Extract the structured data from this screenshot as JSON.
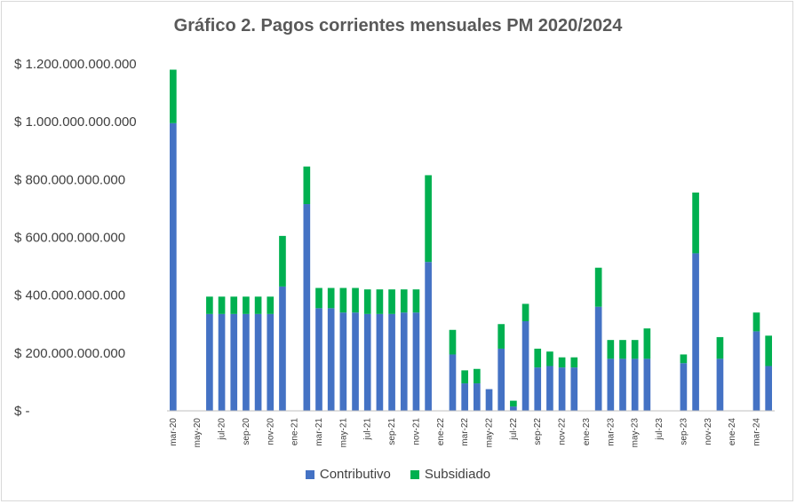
{
  "chart_data": {
    "type": "bar",
    "stacked": true,
    "title": "Gráfico 2. Pagos corrientes mensuales PM 2020/2024",
    "xlabel": "",
    "ylabel": "",
    "ylim": [
      0,
      1200000000000
    ],
    "grid": false,
    "legend_position": "bottom",
    "y_ticks": [
      {
        "value": 0,
        "label": "$ -"
      },
      {
        "value": 200000000000,
        "label": "$ 200.000.000.000"
      },
      {
        "value": 400000000000,
        "label": "$ 400.000.000.000"
      },
      {
        "value": 600000000000,
        "label": "$ 600.000.000.000"
      },
      {
        "value": 800000000000,
        "label": "$ 800.000.000.000"
      },
      {
        "value": 1000000000000,
        "label": "$ 1.000.000.000.000"
      },
      {
        "value": 1200000000000,
        "label": "$ 1.200.000.000.000"
      }
    ],
    "categories": [
      "mar-20",
      "abr-20",
      "may-20",
      "jun-20",
      "jul-20",
      "ago-20",
      "sep-20",
      "oct-20",
      "nov-20",
      "dic-20",
      "ene-21",
      "feb-21",
      "mar-21",
      "abr-21",
      "may-21",
      "jun-21",
      "jul-21",
      "ago-21",
      "sep-21",
      "oct-21",
      "nov-21",
      "dic-21",
      "ene-22",
      "feb-22",
      "mar-22",
      "abr-22",
      "may-22",
      "jun-22",
      "jul-22",
      "ago-22",
      "sep-22",
      "oct-22",
      "nov-22",
      "dic-22",
      "ene-23",
      "feb-23",
      "mar-23",
      "abr-23",
      "may-23",
      "jun-23",
      "jul-23",
      "ago-23",
      "sep-23",
      "oct-23",
      "nov-23",
      "dic-23",
      "ene-24",
      "feb-24",
      "mar-24",
      "abr-24"
    ],
    "x_tick_labels": [
      "mar-20",
      "",
      "may-20",
      "",
      "jul-20",
      "",
      "sep-20",
      "",
      "nov-20",
      "",
      "ene-21",
      "",
      "mar-21",
      "",
      "may-21",
      "",
      "jul-21",
      "",
      "sep-21",
      "",
      "nov-21",
      "",
      "ene-22",
      "",
      "mar-22",
      "",
      "may-22",
      "",
      "jul-22",
      "",
      "sep-22",
      "",
      "nov-22",
      "",
      "ene-23",
      "",
      "mar-23",
      "",
      "may-23",
      "",
      "jul-23",
      "",
      "sep-23",
      "",
      "nov-23",
      "",
      "ene-24",
      "",
      "mar-24",
      ""
    ],
    "series": [
      {
        "name": "Contributivo",
        "color": "#4472c4",
        "values": [
          995000000000,
          0,
          0,
          335000000000,
          335000000000,
          335000000000,
          335000000000,
          335000000000,
          335000000000,
          430000000000,
          0,
          715000000000,
          355000000000,
          355000000000,
          340000000000,
          340000000000,
          335000000000,
          335000000000,
          335000000000,
          340000000000,
          340000000000,
          515000000000,
          0,
          195000000000,
          95000000000,
          95000000000,
          75000000000,
          215000000000,
          15000000000,
          310000000000,
          150000000000,
          155000000000,
          150000000000,
          150000000000,
          0,
          360000000000,
          180000000000,
          180000000000,
          180000000000,
          180000000000,
          0,
          0,
          165000000000,
          545000000000,
          0,
          180000000000,
          0,
          0,
          275000000000,
          155000000000
        ]
      },
      {
        "name": "Subsidiado",
        "color": "#00b050",
        "values": [
          185000000000,
          0,
          0,
          60000000000,
          60000000000,
          60000000000,
          60000000000,
          60000000000,
          60000000000,
          175000000000,
          0,
          130000000000,
          70000000000,
          70000000000,
          85000000000,
          85000000000,
          85000000000,
          85000000000,
          85000000000,
          80000000000,
          80000000000,
          300000000000,
          0,
          85000000000,
          45000000000,
          50000000000,
          0,
          85000000000,
          20000000000,
          60000000000,
          65000000000,
          50000000000,
          35000000000,
          35000000000,
          0,
          135000000000,
          65000000000,
          65000000000,
          65000000000,
          105000000000,
          0,
          0,
          30000000000,
          210000000000,
          0,
          75000000000,
          0,
          0,
          65000000000,
          105000000000
        ]
      }
    ]
  }
}
